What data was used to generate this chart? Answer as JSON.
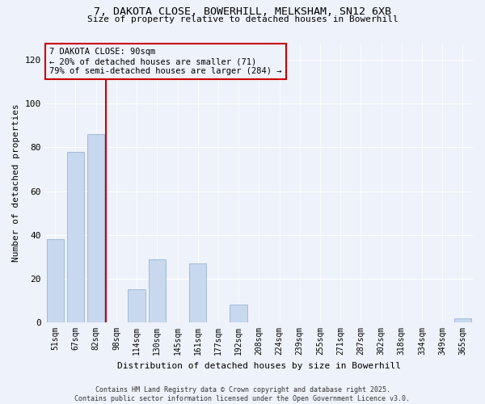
{
  "title1": "7, DAKOTA CLOSE, BOWERHILL, MELKSHAM, SN12 6XB",
  "title2": "Size of property relative to detached houses in Bowerhill",
  "xlabel": "Distribution of detached houses by size in Bowerhill",
  "ylabel": "Number of detached properties",
  "categories": [
    "51sqm",
    "67sqm",
    "82sqm",
    "98sqm",
    "114sqm",
    "130sqm",
    "145sqm",
    "161sqm",
    "177sqm",
    "192sqm",
    "208sqm",
    "224sqm",
    "239sqm",
    "255sqm",
    "271sqm",
    "287sqm",
    "302sqm",
    "318sqm",
    "334sqm",
    "349sqm",
    "365sqm"
  ],
  "values": [
    38,
    78,
    86,
    0,
    15,
    29,
    0,
    27,
    0,
    8,
    0,
    0,
    0,
    0,
    0,
    0,
    0,
    0,
    0,
    0,
    2
  ],
  "bar_color": "#c8d8ee",
  "bar_edge_color": "#9ab4d4",
  "annotation_title": "7 DAKOTA CLOSE: 90sqm",
  "annotation_line1": "← 20% of detached houses are smaller (71)",
  "annotation_line2": "79% of semi-detached houses are larger (284) →",
  "annotation_box_color": "#cc0000",
  "highlight_line_color": "#cc0000",
  "ylim": [
    0,
    128
  ],
  "yticks": [
    0,
    20,
    40,
    60,
    80,
    100,
    120
  ],
  "footer1": "Contains HM Land Registry data © Crown copyright and database right 2025.",
  "footer2": "Contains public sector information licensed under the Open Government Licence v3.0.",
  "bg_color": "#eef2fa"
}
